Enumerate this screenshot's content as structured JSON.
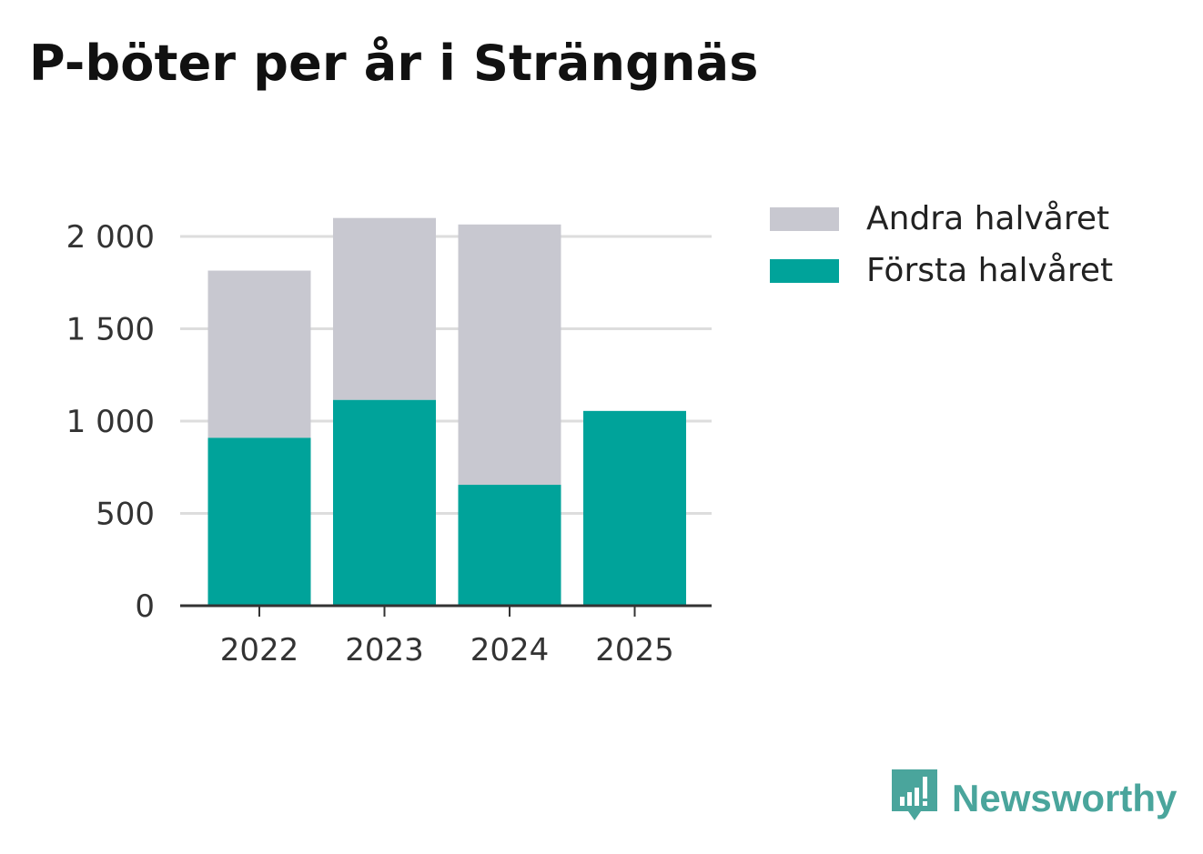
{
  "chart_data": {
    "type": "bar",
    "stacked": true,
    "title": "P-böter per år i Strängnäs",
    "categories": [
      "2022",
      "2023",
      "2024",
      "2025"
    ],
    "series": [
      {
        "name": "Första halvåret",
        "color": "#00a39a",
        "values": [
          910,
          1115,
          655,
          1055
        ]
      },
      {
        "name": "Andra halvåret",
        "color": "#c8c8d0",
        "values": [
          905,
          985,
          1410,
          0
        ]
      }
    ],
    "ylim": [
      0,
      2000
    ],
    "yticks": [
      0,
      500,
      1000,
      1500,
      2000
    ],
    "ytick_labels": [
      "0",
      "500",
      "1 000",
      "1 500",
      "2 000"
    ],
    "xlabel": "",
    "ylabel": "",
    "grid": true,
    "legend": [
      {
        "label": "Andra halvåret",
        "color": "#c8c8d0"
      },
      {
        "label": "Första halvåret",
        "color": "#00a39a"
      }
    ]
  },
  "brand": {
    "name": "Newsworthy",
    "icon": "newsworthy-logo-icon",
    "color": "#4aa59c"
  }
}
